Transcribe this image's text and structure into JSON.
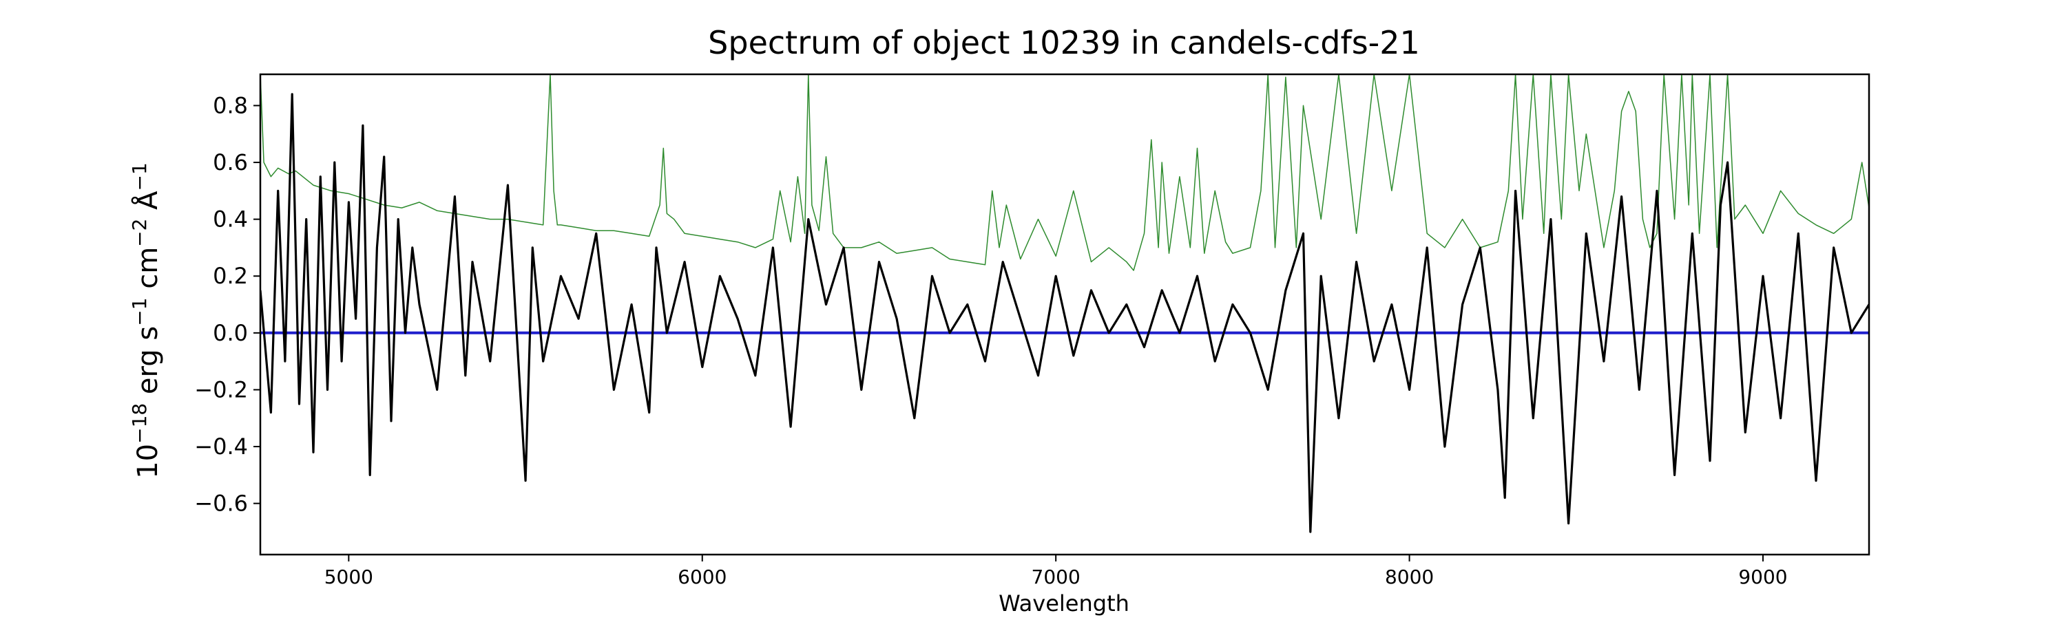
{
  "chart_data": {
    "type": "line",
    "title": "Spectrum of object 10239 in candels-cdfs-21",
    "xlabel": "Wavelength",
    "ylabel": {
      "base": "10",
      "exp1": "−18",
      "text1": " erg s",
      "exp2": "−1",
      "text2": " cm",
      "exp3": "−2",
      "text3": " Å",
      "exp4": "−1"
    },
    "xlim": [
      4750,
      9300
    ],
    "ylim": [
      -0.78,
      0.91
    ],
    "x_ticks": [
      {
        "value": 5000,
        "label": "5000"
      },
      {
        "value": 6000,
        "label": "6000"
      },
      {
        "value": 7000,
        "label": "7000"
      },
      {
        "value": 8000,
        "label": "8000"
      },
      {
        "value": 9000,
        "label": "9000"
      }
    ],
    "y_ticks": [
      {
        "value": 0.8,
        "label": "0.8"
      },
      {
        "value": 0.6,
        "label": "0.6"
      },
      {
        "value": 0.4,
        "label": "0.4"
      },
      {
        "value": 0.2,
        "label": "0.2"
      },
      {
        "value": 0.0,
        "label": "0.0"
      },
      {
        "value": -0.2,
        "label": "−0.2"
      },
      {
        "value": -0.4,
        "label": "−0.4"
      },
      {
        "value": -0.6,
        "label": "−0.6"
      }
    ],
    "grid": false,
    "series": [
      {
        "role": "flux",
        "color": "#000000",
        "x": [
          4750,
          4780,
          4800,
          4820,
          4840,
          4860,
          4880,
          4900,
          4920,
          4940,
          4960,
          4980,
          5000,
          5020,
          5040,
          5060,
          5080,
          5100,
          5120,
          5140,
          5160,
          5180,
          5200,
          5250,
          5300,
          5330,
          5350,
          5400,
          5450,
          5500,
          5520,
          5550,
          5600,
          5650,
          5700,
          5750,
          5800,
          5850,
          5870,
          5900,
          5950,
          6000,
          6050,
          6100,
          6150,
          6200,
          6250,
          6300,
          6350,
          6400,
          6450,
          6500,
          6550,
          6600,
          6650,
          6700,
          6750,
          6800,
          6850,
          6900,
          6950,
          7000,
          7050,
          7100,
          7150,
          7200,
          7250,
          7300,
          7350,
          7400,
          7450,
          7500,
          7550,
          7600,
          7650,
          7700,
          7720,
          7750,
          7800,
          7850,
          7900,
          7950,
          8000,
          8050,
          8100,
          8150,
          8200,
          8250,
          8270,
          8300,
          8350,
          8400,
          8450,
          8500,
          8550,
          8600,
          8650,
          8700,
          8750,
          8800,
          8850,
          8880,
          8900,
          8950,
          9000,
          9050,
          9100,
          9150,
          9200,
          9250,
          9300
        ],
        "y": [
          0.15,
          -0.28,
          0.5,
          -0.1,
          0.84,
          -0.25,
          0.4,
          -0.42,
          0.55,
          -0.2,
          0.6,
          -0.1,
          0.46,
          0.05,
          0.73,
          -0.5,
          0.3,
          0.62,
          -0.31,
          0.4,
          0.0,
          0.3,
          0.1,
          -0.2,
          0.48,
          -0.15,
          0.25,
          -0.1,
          0.52,
          -0.52,
          0.3,
          -0.1,
          0.2,
          0.05,
          0.35,
          -0.2,
          0.1,
          -0.28,
          0.3,
          0.0,
          0.25,
          -0.12,
          0.2,
          0.05,
          -0.15,
          0.3,
          -0.33,
          0.4,
          0.1,
          0.3,
          -0.2,
          0.25,
          0.05,
          -0.3,
          0.2,
          0.0,
          0.1,
          -0.1,
          0.25,
          0.05,
          -0.15,
          0.2,
          -0.08,
          0.15,
          0.0,
          0.1,
          -0.05,
          0.15,
          0.0,
          0.2,
          -0.1,
          0.1,
          0.0,
          -0.2,
          0.15,
          0.35,
          -0.7,
          0.2,
          -0.3,
          0.25,
          -0.1,
          0.1,
          -0.2,
          0.3,
          -0.4,
          0.1,
          0.3,
          -0.2,
          -0.58,
          0.5,
          -0.3,
          0.4,
          -0.67,
          0.35,
          -0.1,
          0.48,
          -0.2,
          0.5,
          -0.5,
          0.35,
          -0.45,
          0.45,
          0.6,
          -0.35,
          0.2,
          -0.3,
          0.35,
          -0.52,
          0.3,
          0.0,
          0.1
        ]
      },
      {
        "role": "uncertainty",
        "color": "#2e8b2e",
        "x": [
          4750,
          4760,
          4780,
          4800,
          4830,
          4850,
          4900,
          4950,
          5000,
          5050,
          5100,
          5150,
          5200,
          5250,
          5300,
          5350,
          5400,
          5450,
          5500,
          5550,
          5570,
          5580,
          5590,
          5600,
          5650,
          5700,
          5750,
          5800,
          5850,
          5880,
          5890,
          5900,
          5920,
          5950,
          6000,
          6050,
          6100,
          6150,
          6200,
          6220,
          6250,
          6270,
          6290,
          6300,
          6310,
          6330,
          6350,
          6370,
          6400,
          6450,
          6500,
          6550,
          6600,
          6650,
          6700,
          6750,
          6800,
          6820,
          6840,
          6860,
          6900,
          6950,
          7000,
          7050,
          7100,
          7150,
          7200,
          7220,
          7250,
          7270,
          7290,
          7300,
          7320,
          7350,
          7380,
          7400,
          7420,
          7450,
          7480,
          7500,
          7550,
          7580,
          7600,
          7620,
          7650,
          7680,
          7700,
          7750,
          7800,
          7850,
          7900,
          7950,
          8000,
          8050,
          8100,
          8150,
          8200,
          8250,
          8280,
          8300,
          8320,
          8350,
          8380,
          8400,
          8430,
          8450,
          8480,
          8500,
          8550,
          8580,
          8600,
          8620,
          8640,
          8660,
          8680,
          8700,
          8720,
          8750,
          8770,
          8790,
          8800,
          8820,
          8850,
          8870,
          8900,
          8920,
          8950,
          9000,
          9050,
          9100,
          9150,
          9200,
          9250,
          9280,
          9300
        ],
        "y": [
          0.91,
          0.6,
          0.55,
          0.58,
          0.56,
          0.57,
          0.52,
          0.5,
          0.49,
          0.47,
          0.45,
          0.44,
          0.46,
          0.43,
          0.42,
          0.41,
          0.4,
          0.4,
          0.39,
          0.38,
          0.91,
          0.5,
          0.38,
          0.38,
          0.37,
          0.36,
          0.36,
          0.35,
          0.34,
          0.45,
          0.65,
          0.42,
          0.4,
          0.35,
          0.34,
          0.33,
          0.32,
          0.3,
          0.33,
          0.5,
          0.32,
          0.55,
          0.35,
          0.91,
          0.45,
          0.36,
          0.62,
          0.35,
          0.3,
          0.3,
          0.32,
          0.28,
          0.29,
          0.3,
          0.26,
          0.25,
          0.24,
          0.5,
          0.3,
          0.45,
          0.26,
          0.4,
          0.27,
          0.5,
          0.25,
          0.3,
          0.25,
          0.22,
          0.35,
          0.68,
          0.3,
          0.6,
          0.28,
          0.55,
          0.3,
          0.65,
          0.28,
          0.5,
          0.32,
          0.28,
          0.3,
          0.5,
          0.91,
          0.3,
          0.9,
          0.3,
          0.8,
          0.4,
          0.91,
          0.35,
          0.91,
          0.5,
          0.91,
          0.35,
          0.3,
          0.4,
          0.3,
          0.32,
          0.5,
          0.91,
          0.4,
          0.91,
          0.35,
          0.91,
          0.4,
          0.91,
          0.5,
          0.7,
          0.3,
          0.5,
          0.78,
          0.85,
          0.78,
          0.4,
          0.3,
          0.35,
          0.91,
          0.4,
          0.91,
          0.45,
          0.91,
          0.35,
          0.91,
          0.3,
          0.91,
          0.4,
          0.45,
          0.35,
          0.5,
          0.42,
          0.38,
          0.35,
          0.4,
          0.6,
          0.44
        ]
      },
      {
        "role": "zero-level",
        "color": "#1f1fcc",
        "x": [
          4750,
          9300
        ],
        "y": [
          0.0,
          0.0
        ]
      }
    ]
  }
}
